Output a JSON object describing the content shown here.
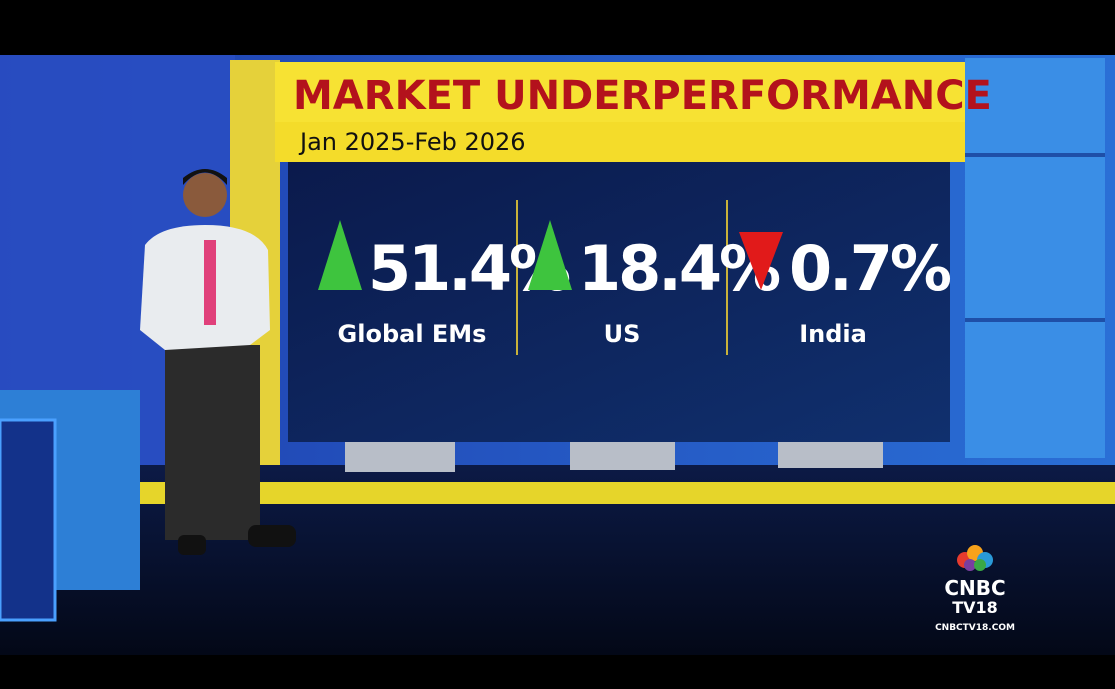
{
  "header": {
    "title": "MARKET UNDERPERFORMANCE",
    "subtitle": "Jan 2025-Feb 2026"
  },
  "stats": [
    {
      "value": "51.4%",
      "label": "Global EMs",
      "trend": "up",
      "color": "#3ec43e"
    },
    {
      "value": "18.4%",
      "label": "US",
      "trend": "up",
      "color": "#3ec43e"
    },
    {
      "value": "0.7%",
      "label": "India",
      "trend": "down",
      "color": "#e11a1a"
    }
  ],
  "logo": {
    "name": "CNBC",
    "sub": "TV18",
    "url": "CNBCTV18.COM"
  }
}
